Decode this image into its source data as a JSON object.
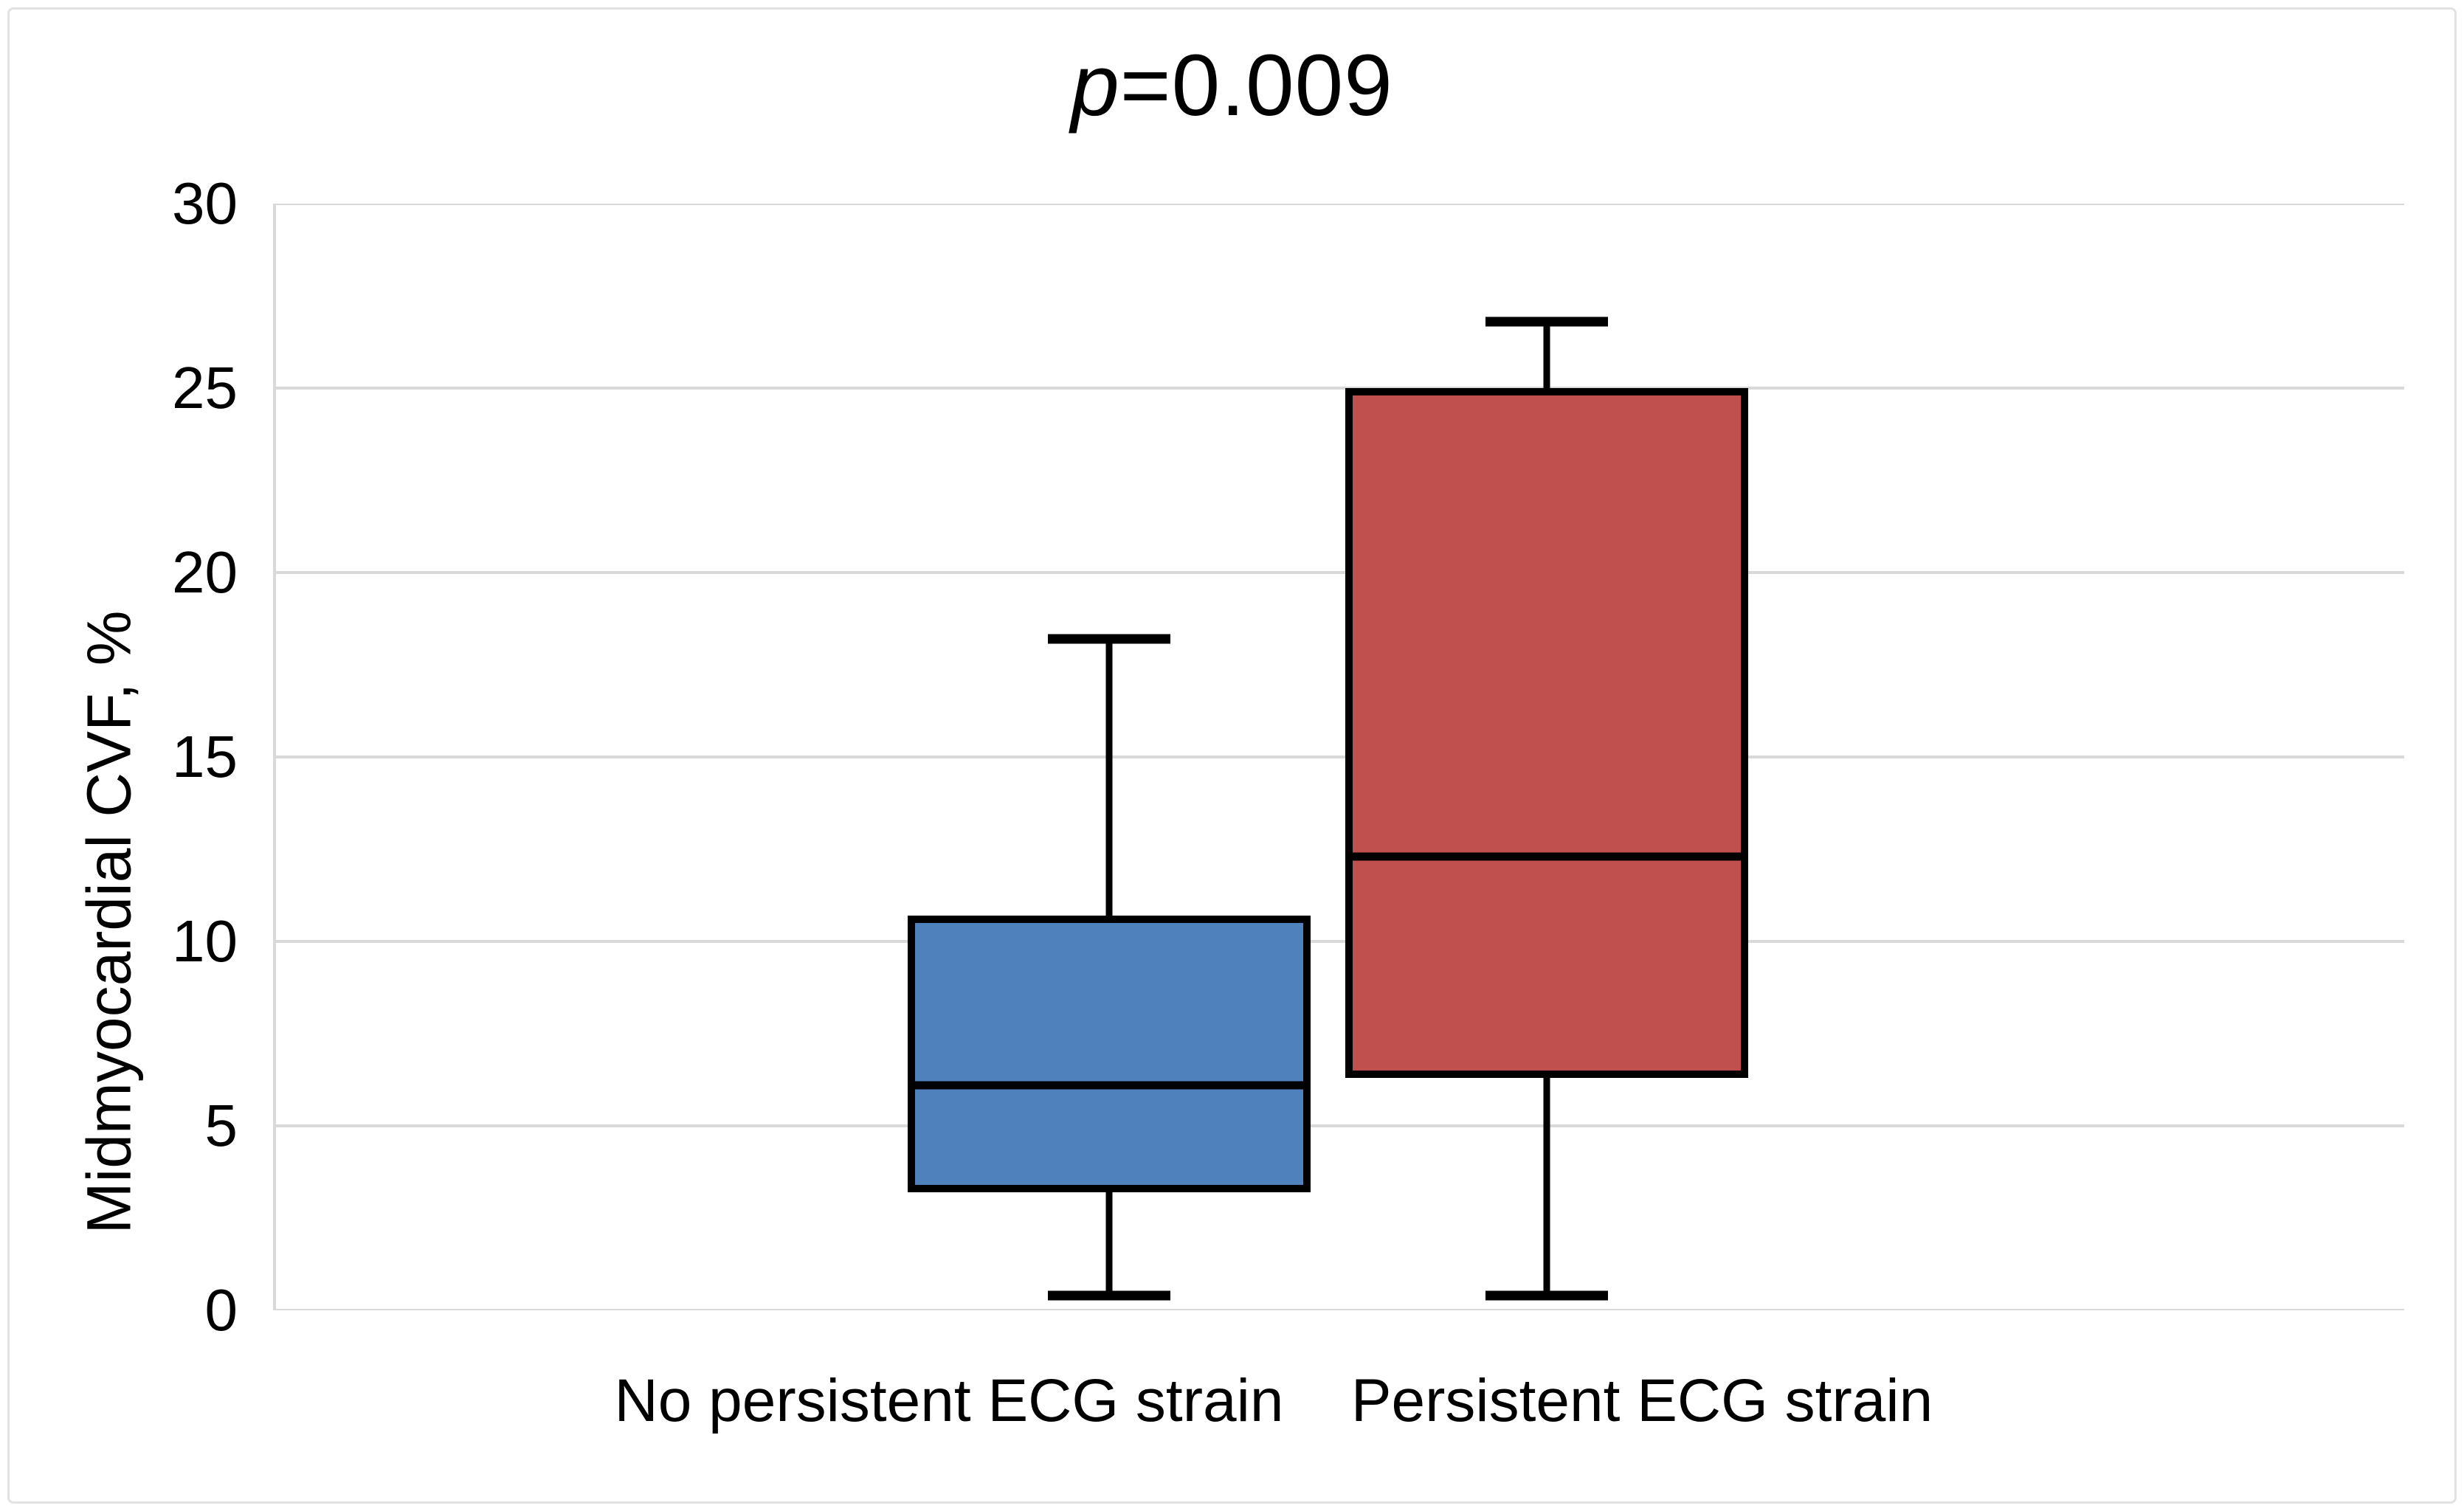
{
  "figure": {
    "title": {
      "italic_part": "p",
      "rest_part": "=0.009"
    }
  },
  "chart_data": {
    "type": "boxplot",
    "title": "p=0.009",
    "xlabel": "",
    "ylabel": "Midmyocardial CVF, %",
    "ylim": [
      0,
      30
    ],
    "yticks": [
      0,
      5,
      10,
      15,
      20,
      25,
      30
    ],
    "grid": "horizontal",
    "legend": "none",
    "categories": [
      "No persistent ECG strain",
      "Persistent ECG strain"
    ],
    "series": [
      {
        "name": "No persistent ECG strain",
        "whisker_low": 0.4,
        "q1": 3.3,
        "median": 6.1,
        "q3": 10.6,
        "whisker_high": 18.2,
        "fill_color": "#4F81BD"
      },
      {
        "name": "Persistent ECG strain",
        "whisker_low": 0.4,
        "q1": 6.4,
        "median": 12.3,
        "q3": 24.9,
        "whisker_high": 26.8,
        "fill_color": "#C0504D"
      }
    ],
    "colors": {
      "gridline": "#d9d9d9",
      "axis_line": "#d9d9d9",
      "box_border": "#000000",
      "whisker": "#000000",
      "title_text": "#000000",
      "figure_frame": "#e2e2e2"
    }
  }
}
